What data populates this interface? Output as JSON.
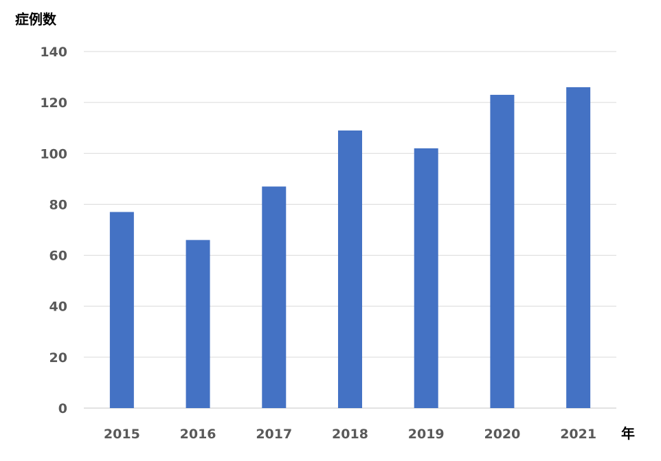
{
  "chart_data": {
    "type": "bar",
    "ylabel": "症例数",
    "xlabel": "年",
    "categories": [
      "2015",
      "2016",
      "2017",
      "2018",
      "2019",
      "2020",
      "2021"
    ],
    "values": [
      77,
      66,
      87,
      109,
      102,
      123,
      126
    ],
    "ylim": [
      0,
      140
    ],
    "yticks": [
      0,
      20,
      40,
      60,
      80,
      100,
      120,
      140
    ],
    "grid": true,
    "bar_color": "#4472c4",
    "grid_color": "#d9d9d9",
    "tick_color": "#595959"
  }
}
